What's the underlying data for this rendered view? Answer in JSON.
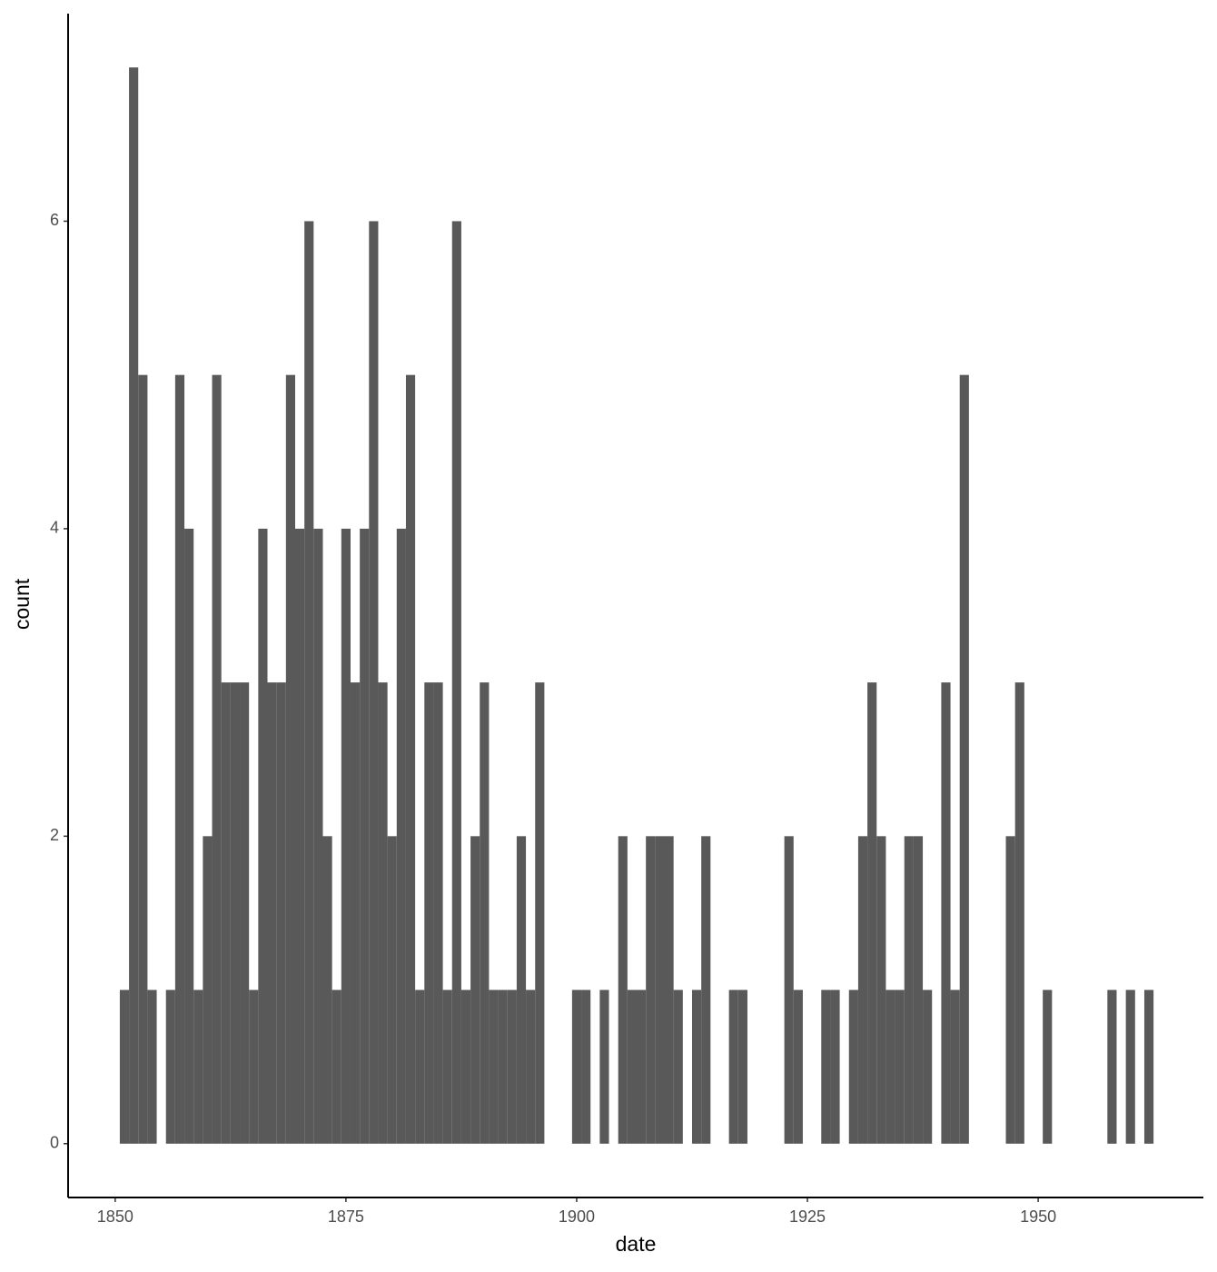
{
  "chart_data": {
    "type": "histogram",
    "x_label": "date",
    "y_label": "count",
    "color": "#595959",
    "bins": [
      1850.5,
      1851.5,
      1852.5,
      1853.5,
      1854.5,
      1855.5,
      1856.5,
      1857.5,
      1858.5,
      1859.5,
      1860.5,
      1861.5,
      1862.5,
      1863.5,
      1864.5,
      1865.5,
      1866.5,
      1867.5,
      1868.5,
      1869.5,
      1870.5,
      1871.5,
      1872.5,
      1873.5,
      1874.5,
      1875.5,
      1876.5,
      1877.5,
      1878.5,
      1879.5,
      1880.5,
      1881.5,
      1882.5,
      1883.5,
      1884.5,
      1885.5,
      1886.5,
      1887.5,
      1888.5,
      1889.5,
      1890.5,
      1891.5,
      1892.5,
      1893.5,
      1894.5,
      1895.5,
      1896.5,
      1897.5,
      1898.5,
      1899.5,
      1900.5,
      1901.5,
      1902.5,
      1903.5,
      1904.5,
      1905.5,
      1906.5,
      1907.5,
      1908.5,
      1909.5,
      1910.5,
      1911.5,
      1912.5,
      1913.5,
      1914.5,
      1915.5,
      1916.5,
      1917.5,
      1918.5,
      1919.5,
      1920.5,
      1921.5,
      1922.5,
      1923.5,
      1924.5,
      1925.5,
      1926.5,
      1927.5,
      1928.5,
      1929.5,
      1930.5,
      1931.5,
      1932.5,
      1933.5,
      1934.5,
      1935.5,
      1936.5,
      1937.5,
      1938.5,
      1939.5,
      1940.5,
      1941.5,
      1942.5,
      1943.5,
      1944.5,
      1945.5,
      1946.5,
      1947.5,
      1948.5,
      1949.5,
      1950.5,
      1951.5,
      1952.5,
      1953.5,
      1954.5,
      1955.5,
      1956.5,
      1957.5,
      1958.5,
      1959.5,
      1960.5,
      1961.5,
      1962.5
    ],
    "values": [
      1,
      7,
      5,
      1,
      0,
      1,
      5,
      4,
      1,
      2,
      5,
      3,
      3,
      3,
      1,
      4,
      3,
      3,
      5,
      4,
      6,
      4,
      2,
      1,
      4,
      3,
      4,
      6,
      3,
      2,
      4,
      5,
      1,
      3,
      3,
      1,
      6,
      1,
      2,
      3,
      1,
      1,
      1,
      2,
      1,
      3,
      0,
      0,
      0,
      1,
      1,
      0,
      1,
      0,
      2,
      1,
      1,
      2,
      2,
      2,
      1,
      0,
      1,
      2,
      0,
      0,
      1,
      1,
      0,
      0,
      0,
      0,
      2,
      1,
      0,
      0,
      1,
      1,
      0,
      1,
      2,
      3,
      2,
      1,
      1,
      2,
      2,
      1,
      0,
      3,
      1,
      5,
      0,
      0,
      0,
      0,
      2,
      3,
      0,
      0,
      1,
      0,
      0,
      0,
      0,
      0,
      0,
      1,
      0,
      1,
      0,
      1
    ],
    "xlim": [
      1844.9,
      1967.9
    ],
    "xticks": [
      1850,
      1875,
      1900,
      1925,
      1950
    ],
    "ylim": [
      -0.35,
      7.35
    ],
    "yticks": [
      0,
      2,
      4,
      6
    ],
    "grid": false
  }
}
